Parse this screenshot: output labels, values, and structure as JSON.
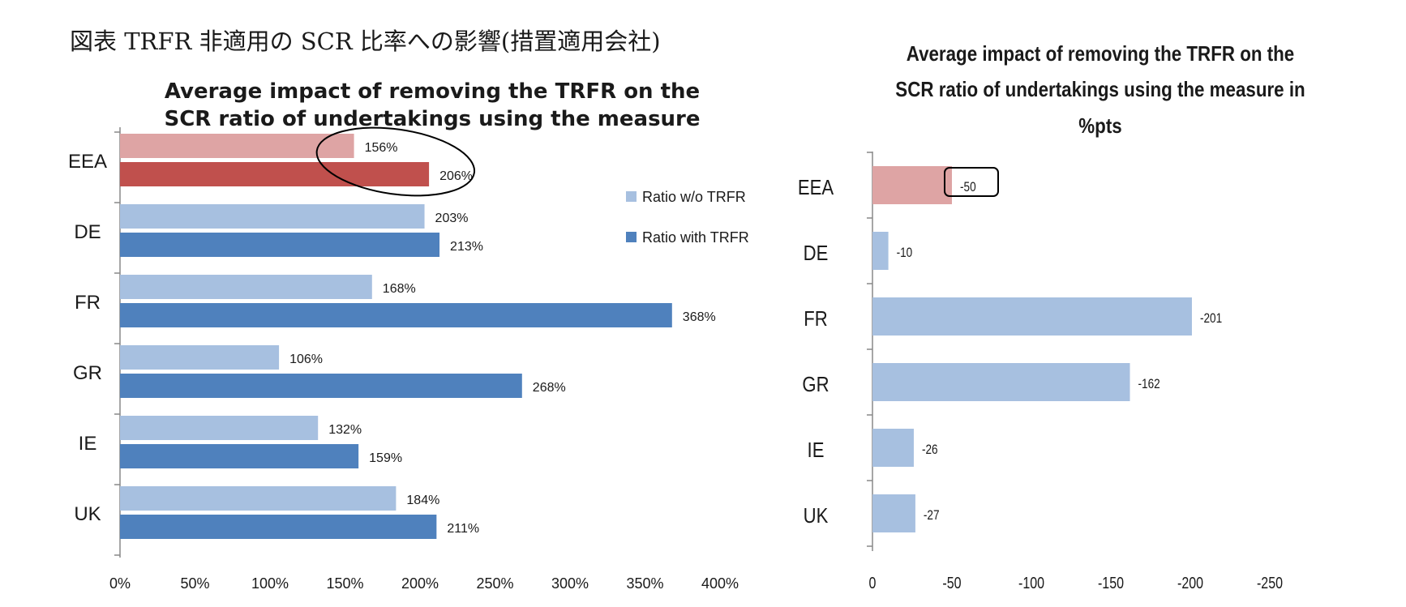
{
  "figure_title": "図表 TRFR 非適用の SCR 比率への影響(措置適用会社)",
  "colors": {
    "highlight_light": "#dea4a4",
    "highlight_dark": "#c0504d",
    "series_light": "#a7c0e0",
    "series_dark": "#4f81bd",
    "axis": "#888888"
  },
  "chart_data": [
    {
      "type": "bar",
      "orientation": "horizontal",
      "title": "Average impact of removing the TRFR on the SCR ratio of undertakings using the measure",
      "title_lines": [
        "Average impact of removing the TRFR on the",
        "SCR ratio of undertakings using the measure"
      ],
      "categories": [
        "EEA",
        "DE",
        "FR",
        "GR",
        "IE",
        "UK"
      ],
      "series": [
        {
          "name": "Ratio w/o TRFR",
          "values": [
            156,
            203,
            168,
            106,
            132,
            184
          ],
          "labels": [
            "156%",
            "203%",
            "168%",
            "106%",
            "132%",
            "184%"
          ]
        },
        {
          "name": "Ratio with TRFR",
          "values": [
            206,
            213,
            368,
            268,
            159,
            211
          ],
          "labels": [
            "206%",
            "213%",
            "368%",
            "268%",
            "159%",
            "211%"
          ]
        }
      ],
      "xlim": [
        0,
        400
      ],
      "xticks": [
        0,
        50,
        100,
        150,
        200,
        250,
        300,
        350,
        400
      ],
      "xtick_labels": [
        "0%",
        "50%",
        "100%",
        "150%",
        "200%",
        "250%",
        "300%",
        "350%",
        "400%"
      ],
      "legend": [
        "Ratio w/o TRFR",
        "Ratio with TRFR"
      ],
      "legend_position": "right",
      "annotation": "ellipse around EEA value labels",
      "highlighted_category": "EEA",
      "grid": false
    },
    {
      "type": "bar",
      "orientation": "horizontal",
      "title": "Average impact of removing the TRFR on the SCR ratio of undertakings using the measure in %pts",
      "title_lines": [
        "Average impact of  removing the TRFR on the",
        "SCR ratio of undertakings using the measure in",
        "%pts"
      ],
      "categories": [
        "EEA",
        "DE",
        "FR",
        "GR",
        "IE",
        "UK"
      ],
      "values": [
        -50,
        -10,
        -201,
        -162,
        -26,
        -27
      ],
      "labels": [
        "-50",
        "-10",
        "-201",
        "-162",
        "-26",
        "-27"
      ],
      "xlim": [
        0,
        -250
      ],
      "xticks": [
        0,
        -50,
        -100,
        -150,
        -200,
        -250
      ],
      "xtick_labels": [
        "0",
        "-50",
        "-100",
        "-150",
        "-200",
        "-250"
      ],
      "annotation": "box around EEA value label",
      "highlighted_category": "EEA",
      "grid": false
    }
  ]
}
